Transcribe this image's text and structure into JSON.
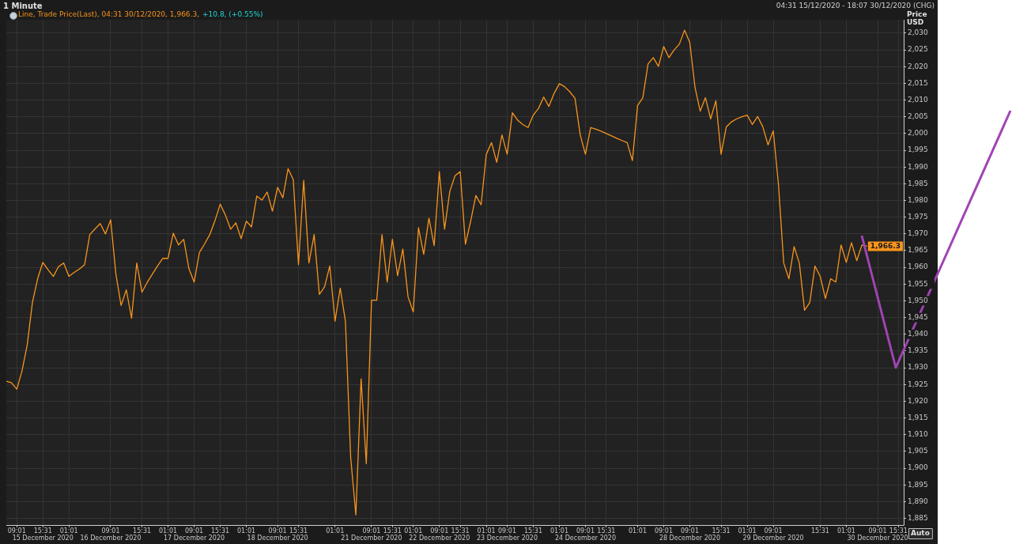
{
  "chart_data": {
    "type": "line",
    "title": "1 Minute",
    "ylabel": "Price USD",
    "annotations": [
      "04:31 15/12/2020 - 18:07 30/12/2020 (CHG)",
      "+10.8, (+0.55%)",
      "Auto",
      "1,966.3"
    ],
    "categories": [
      null,
      null,
      "09:01",
      null,
      null,
      null,
      null,
      "15:31\n15 December 2020",
      null,
      null,
      null,
      null,
      "01:01",
      null,
      null,
      null,
      null,
      null,
      null,
      null,
      "09:01\n16 December 2020",
      null,
      null,
      null,
      null,
      null,
      "15:31",
      null,
      null,
      null,
      null,
      "01:01",
      null,
      null,
      null,
      null,
      "09:01\n17 December 2020",
      null,
      null,
      null,
      null,
      "15:31",
      null,
      null,
      null,
      null,
      "01:01",
      null,
      null,
      null,
      null,
      null,
      "09:01\n18 December 2020",
      null,
      null,
      null,
      "15:31",
      null,
      null,
      null,
      null,
      null,
      null,
      "01:01",
      null,
      null,
      null,
      null,
      null,
      null,
      "09:01\n21 December 2020",
      null,
      null,
      null,
      "15:31",
      null,
      null,
      null,
      "01:01",
      null,
      null,
      null,
      null,
      "09:01\n22 December 2020",
      null,
      null,
      null,
      "15:31",
      null,
      null,
      null,
      null,
      "01:01",
      null,
      null,
      null,
      "09:01\n23 December 2020",
      null,
      null,
      null,
      null,
      "15:31",
      null,
      null,
      null,
      null,
      "01:01",
      null,
      null,
      null,
      null,
      "09:01\n24 December 2020",
      null,
      null,
      null,
      "15:31",
      null,
      null,
      null,
      null,
      null,
      "01:01",
      null,
      null,
      null,
      null,
      "09:01",
      null,
      null,
      null,
      null,
      "09:01\n28 December 2020",
      null,
      null,
      null,
      null,
      null,
      "15:31",
      null,
      null,
      null,
      null,
      "01:01",
      null,
      null,
      null,
      null,
      "09:01\n29 December 2020",
      null,
      null,
      null,
      null,
      null,
      null,
      null,
      null,
      "15:31",
      null,
      null,
      null,
      null,
      "01:01",
      null,
      null,
      null,
      null,
      null,
      "09:01\n30 December 2020",
      null,
      null,
      null,
      "15:31",
      null
    ],
    "series": [
      {
        "name": "Line, Trade Price(Last), 04:31 30/12/2020, 1,966.3,",
        "color": "#f7941d",
        "values": [
          1926,
          1925.5,
          1923.6,
          1929,
          1936.8,
          1949.5,
          1956.6,
          1961.5,
          1959.3,
          1957.3,
          1960.2,
          1961.3,
          1957.3,
          1958.5,
          1959.5,
          1960.8,
          1969.8,
          1971.5,
          1973.1,
          1970,
          1974.2,
          1958,
          1948.6,
          1953.3,
          1944.8,
          1961.3,
          1952.6,
          1955.5,
          1958,
          1960.5,
          1962.7,
          1962.7,
          1970.2,
          1966.7,
          1968.4,
          1959.6,
          1955.6,
          1964.4,
          1967,
          1969.8,
          1974,
          1978.9,
          1975.6,
          1971.4,
          1973.3,
          1968.6,
          1973.8,
          1972.1,
          1981.3,
          1980.1,
          1982.5,
          1976.8,
          1983.9,
          1980.8,
          1989.5,
          1986.2,
          1960.8,
          1986,
          1961.3,
          1969.8,
          1951.9,
          1954.2,
          1960.4,
          1943.9,
          1953.8,
          1943.9,
          1903.2,
          1886,
          1926.7,
          1901.3,
          1950.2,
          1950.2,
          1969.8,
          1955.6,
          1968.4,
          1957.5,
          1965.5,
          1951.2,
          1946.7,
          1971.9,
          1963.9,
          1974.7,
          1966.5,
          1988.6,
          1971.4,
          1982.7,
          1987.4,
          1988.6,
          1966.9,
          1973.8,
          1981.5,
          1978.7,
          1993.8,
          1997.3,
          1991.4,
          1999.6,
          1993.8,
          2006.2,
          2004,
          2002.7,
          2001.8,
          2005.5,
          2007.5,
          2010.9,
          2008.1,
          2012,
          2014.9,
          2014,
          2012.5,
          2010.5,
          1999.6,
          1993.8,
          2001.8,
          2001.3,
          2000.7,
          2000,
          1999.3,
          1998.6,
          1997.9,
          1997.3,
          1991.9,
          2008.4,
          2010.7,
          2020.8,
          2022.7,
          2020.1,
          2026,
          2022.7,
          2025,
          2026.7,
          2030.9,
          2027.2,
          2013.8,
          2006.7,
          2010.7,
          2004.4,
          2009.8,
          1993.8,
          2002,
          2003.5,
          2004.4,
          2005,
          2005.5,
          2002.7,
          2005.1,
          2002,
          1996.6,
          2000.8,
          1984.8,
          1961.3,
          1956.6,
          1966.2,
          1961.3,
          1947.2,
          1949.5,
          1960.4,
          1957.3,
          1950.7,
          1956.6,
          1955.6,
          1966.7,
          1961.5,
          1967.4,
          1962,
          1966.7,
          1966.3,
          null,
          null,
          null,
          null,
          null,
          null,
          null
        ]
      }
    ],
    "ylim": [
      1883,
      2034
    ],
    "yticks": [
      {
        "value": 1885,
        "label": "1,885"
      },
      {
        "value": 1890,
        "label": "1,890"
      },
      {
        "value": 1895,
        "label": "1,895"
      },
      {
        "value": 1900,
        "label": "1,900"
      },
      {
        "value": 1905,
        "label": "1,905"
      },
      {
        "value": 1910,
        "label": "1,910"
      },
      {
        "value": 1915,
        "label": "1,915"
      },
      {
        "value": 1920,
        "label": "1,920"
      },
      {
        "value": 1925,
        "label": "1,925"
      },
      {
        "value": 1930,
        "label": "1,930"
      },
      {
        "value": 1935,
        "label": "1,935"
      },
      {
        "value": 1940,
        "label": "1,940"
      },
      {
        "value": 1945,
        "label": "1,945"
      },
      {
        "value": 1950,
        "label": "1,950"
      },
      {
        "value": 1955,
        "label": "1,955"
      },
      {
        "value": 1960,
        "label": "1,960"
      },
      {
        "value": 1965,
        "label": "1,965"
      },
      {
        "value": 1970,
        "label": "1,970"
      },
      {
        "value": 1975,
        "label": "1,975"
      },
      {
        "value": 1980,
        "label": "1,980"
      },
      {
        "value": 1985,
        "label": "1,985"
      },
      {
        "value": 1990,
        "label": "1,990"
      },
      {
        "value": 1995,
        "label": "1,995"
      },
      {
        "value": 2000,
        "label": "2,000"
      },
      {
        "value": 2005,
        "label": "2,005"
      },
      {
        "value": 2010,
        "label": "2,010"
      },
      {
        "value": 2015,
        "label": "2,015"
      },
      {
        "value": 2020,
        "label": "2,020"
      },
      {
        "value": 2025,
        "label": "2,025"
      },
      {
        "value": 2030,
        "label": "2,030"
      }
    ],
    "grid": true,
    "legend": "top left",
    "marker": "none",
    "line_style": "solid"
  }
}
